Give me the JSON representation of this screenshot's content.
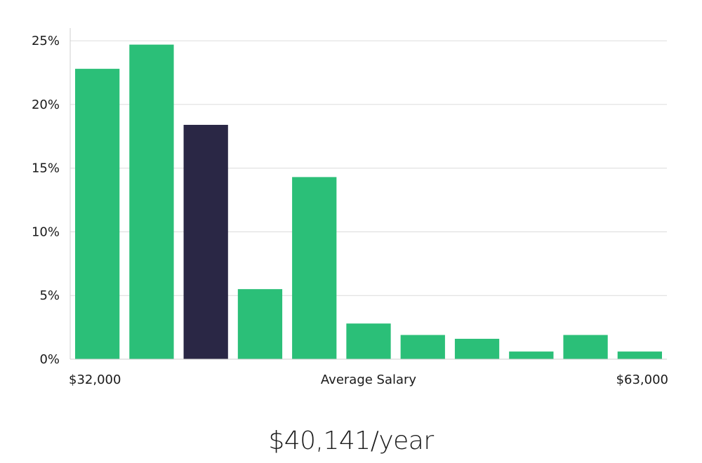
{
  "colors": {
    "bar": "#2bbf78",
    "highlight": "#2a2745",
    "grid": "#dcdcdc",
    "axis": "#cfcfcf"
  },
  "chart_data": {
    "type": "bar",
    "title": "",
    "xlabel": "Average Salary",
    "ylabel": "",
    "x_range_labels": {
      "min": "$32,000",
      "max": "$63,000"
    },
    "yticks": [
      "0%",
      "5%",
      "10%",
      "15%",
      "20%",
      "25%"
    ],
    "ylim": [
      0,
      26
    ],
    "grid": true,
    "unit": "%",
    "values": [
      22.8,
      24.7,
      18.4,
      5.5,
      14.3,
      2.8,
      1.9,
      1.6,
      0.6,
      1.9,
      0.6
    ],
    "highlight_index": 2
  },
  "summary": {
    "salary_text": "$40,141/year"
  }
}
